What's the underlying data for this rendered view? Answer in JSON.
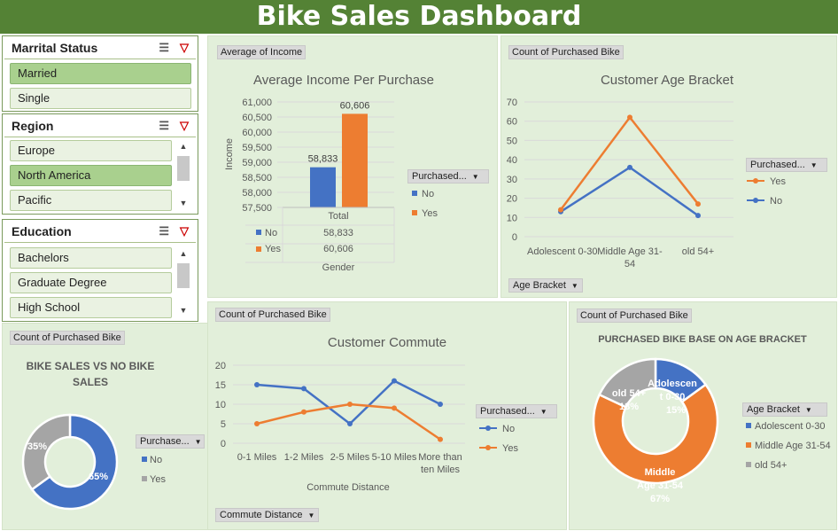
{
  "title": "Bike Sales Dashboard",
  "slicers": {
    "marital": {
      "title": "Marrital Status",
      "items": [
        "Married",
        "Single"
      ],
      "selected": "Married"
    },
    "region": {
      "title": "Region",
      "items": [
        "Europe",
        "North America",
        "Pacific"
      ],
      "selected": "North America"
    },
    "education": {
      "title": "Education",
      "items": [
        "Bachelors",
        "Graduate Degree",
        "High School"
      ]
    }
  },
  "colors": {
    "header": "#548235",
    "panel": "#e2efda",
    "blue": "#4472c4",
    "orange": "#ed7d31",
    "gray": "#a5a5a5",
    "slicer_selected": "#a9d08e"
  },
  "icons": [
    "multi-select-icon",
    "clear-filter-icon",
    "chevron-up-icon",
    "chevron-down-icon",
    "dropdown-caret-icon"
  ],
  "income": {
    "field_tag": "Average of Income",
    "legend_title": "Purchased...",
    "legend_no": "No",
    "legend_yes": "Yes",
    "table_no": "No",
    "table_yes": "Yes",
    "table_no_val": "58,833",
    "table_yes_val": "60,606",
    "total_label": "Total",
    "axis_field": "Gender",
    "chart_data": {
      "type": "bar",
      "title": "Average Income Per Purchase",
      "ylabel": "Income",
      "categories": [
        "Total"
      ],
      "series": [
        {
          "name": "No",
          "values": [
            58833
          ]
        },
        {
          "name": "Yes",
          "values": [
            60606
          ]
        }
      ],
      "ylim": [
        57500,
        61000
      ],
      "yticks": [
        "61,000",
        "60,500",
        "60,000",
        "59,500",
        "59,000",
        "58,500",
        "58,000",
        "57,500"
      ],
      "data_labels": [
        "58,833",
        "60,606"
      ]
    }
  },
  "age": {
    "field_tag": "Count of Purchased Bike",
    "legend_title": "Purchased...",
    "legend_yes": "Yes",
    "legend_no": "No",
    "axis_field": "Age Bracket",
    "chart_data": {
      "type": "line",
      "title": "Customer Age Bracket",
      "categories": [
        "Adolescent 0-30",
        "Middle Age 31-54",
        "old 54+"
      ],
      "series": [
        {
          "name": "No",
          "values": [
            13,
            36,
            11
          ]
        },
        {
          "name": "Yes",
          "values": [
            14,
            62,
            17
          ]
        }
      ],
      "ylim": [
        0,
        70
      ],
      "yticks": [
        "70",
        "60",
        "50",
        "40",
        "30",
        "20",
        "10",
        "0"
      ]
    }
  },
  "commute": {
    "field_tag": "Count of Purchased Bike",
    "legend_title": "Purchased...",
    "legend_no": "No",
    "legend_yes": "Yes",
    "xlabel": "Commute  Distance",
    "axis_field": "Commute Distance",
    "chart_data": {
      "type": "line",
      "title": "Customer Commute",
      "categories": [
        "0-1 Miles",
        "1-2 Miles",
        "2-5 Miles",
        "5-10 Miles",
        "More than ten Miles"
      ],
      "series": [
        {
          "name": "No",
          "values": [
            15,
            14,
            5,
            16,
            10
          ]
        },
        {
          "name": "Yes",
          "values": [
            5,
            8,
            10,
            9,
            1
          ]
        }
      ],
      "ylim": [
        0,
        20
      ],
      "yticks": [
        "20",
        "15",
        "10",
        "5",
        "0"
      ]
    }
  },
  "sales": {
    "field_tag": "Count of Purchased Bike",
    "legend_title": "Purchase...",
    "legend_no": "No",
    "legend_yes": "Yes",
    "label_no": "65%",
    "label_yes": "35%",
    "chart_data": {
      "type": "pie",
      "title": "BIKE SALES VS NO BIKE SALES",
      "categories": [
        "No",
        "Yes"
      ],
      "values": [
        65,
        35
      ]
    }
  },
  "agebase": {
    "field_tag": "Count of Purchased Bike",
    "legend_title": "Age Bracket",
    "legend_items": [
      "Adolescent 0-30",
      "Middle Age 31-54",
      "old 54+"
    ],
    "labels": [
      [
        "Adolescen",
        "t 0-30",
        "15%"
      ],
      [
        "Middle",
        "Age 31-54",
        "67%"
      ],
      [
        "old 54+",
        "18%"
      ]
    ],
    "chart_data": {
      "type": "pie",
      "title": "PURCHASED BIKE BASE ON AGE BRACKET",
      "categories": [
        "Adolescent 0-30",
        "Middle Age 31-54",
        "old 54+"
      ],
      "values": [
        15,
        67,
        18
      ]
    }
  }
}
